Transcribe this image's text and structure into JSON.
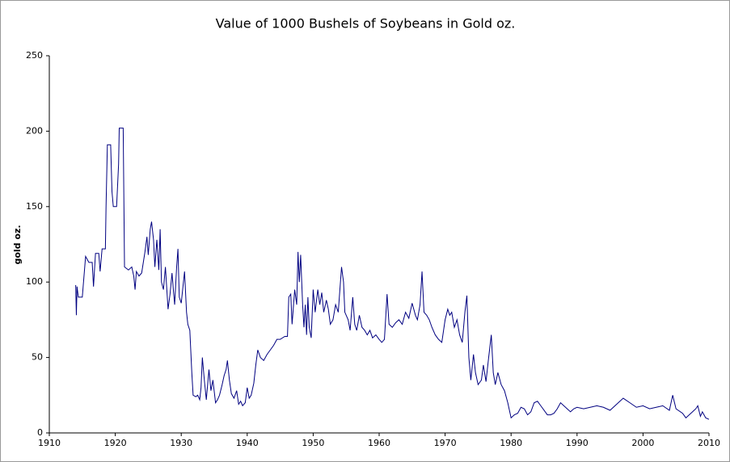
{
  "chart_data": {
    "type": "line",
    "title": "Value of 1000 Bushels of Soybeans in Gold oz.",
    "y_label": "gold oz.",
    "xlim": [
      1910,
      2010
    ],
    "xticks": [
      1910,
      1920,
      1930,
      1940,
      1950,
      1960,
      1970,
      1980,
      1990,
      2000,
      2010
    ],
    "ylim": [
      0,
      250
    ],
    "yticks": [
      0,
      50,
      100,
      150,
      200,
      250
    ],
    "grid": false,
    "series": [
      {
        "name": "Soybeans",
        "color": "#000080",
        "x": [
          1914.0,
          1914.1,
          1914.2,
          1914.4,
          1915,
          1915.5,
          1916,
          1916.5,
          1916.7,
          1917,
          1917.5,
          1917.7,
          1918,
          1918.5,
          1918.6,
          1918.8,
          1919.3,
          1919.5,
          1919.7,
          1920.2,
          1920.5,
          1920.6,
          1921.2,
          1921.4,
          1922,
          1922.5,
          1922.8,
          1923,
          1923.2,
          1923.6,
          1924,
          1924.5,
          1924.8,
          1925,
          1925.3,
          1925.5,
          1925.8,
          1926,
          1926.3,
          1926.6,
          1926.8,
          1927,
          1927.3,
          1927.6,
          1928,
          1928.3,
          1928.6,
          1928.8,
          1929,
          1929.3,
          1929.5,
          1929.7,
          1930,
          1930.5,
          1930.8,
          1931,
          1931.3,
          1931.6,
          1931.8,
          1932.2,
          1932.5,
          1932.8,
          1933,
          1933.2,
          1933.5,
          1933.8,
          1934.2,
          1934.5,
          1934.8,
          1935.2,
          1935.5,
          1935.8,
          1936.2,
          1936.5,
          1936.8,
          1937,
          1937.3,
          1937.6,
          1938,
          1938.4,
          1938.7,
          1939,
          1939.3,
          1939.7,
          1940,
          1940.3,
          1940.6,
          1941,
          1941.3,
          1941.6,
          1942,
          1942.5,
          1943,
          1943.5,
          1944,
          1944.5,
          1945,
          1945.7,
          1946.1,
          1946.3,
          1946.6,
          1946.8,
          1947.2,
          1947.5,
          1947.7,
          1947.9,
          1948.1,
          1948.4,
          1948.6,
          1948.8,
          1949,
          1949.2,
          1949.4,
          1949.7,
          1950,
          1950.3,
          1950.7,
          1951,
          1951.3,
          1951.6,
          1952,
          1952.3,
          1952.6,
          1953,
          1953.4,
          1953.8,
          1954.3,
          1954.6,
          1954.8,
          1955.3,
          1955.6,
          1956,
          1956.3,
          1956.6,
          1957,
          1957.4,
          1957.8,
          1958.2,
          1958.6,
          1959,
          1959.5,
          1960,
          1960.4,
          1960.8,
          1961.2,
          1961.5,
          1962,
          1962.5,
          1963,
          1963.5,
          1964,
          1964.5,
          1965,
          1965.5,
          1965.8,
          1966.2,
          1966.5,
          1966.8,
          1967.2,
          1967.6,
          1968,
          1968.5,
          1969,
          1969.5,
          1970,
          1970.4,
          1970.7,
          1971,
          1971.4,
          1971.8,
          1972.2,
          1972.6,
          1973,
          1973.3,
          1973.6,
          1973.9,
          1974.3,
          1974.6,
          1975,
          1975.5,
          1975.8,
          1976.2,
          1976.6,
          1977,
          1977.3,
          1977.6,
          1978,
          1978.5,
          1979,
          1979.5,
          1980,
          1980.5,
          1981,
          1981.5,
          1982,
          1982.5,
          1983,
          1983.5,
          1984,
          1984.5,
          1985,
          1985.5,
          1986,
          1986.5,
          1987,
          1987.5,
          1988,
          1988.5,
          1989,
          1989.5,
          1990,
          1991,
          1992,
          1993,
          1994,
          1995,
          1996,
          1997,
          1998,
          1999,
          2000,
          2001,
          2002,
          2003,
          2004,
          2004.5,
          2005,
          2006,
          2006.5,
          2007,
          2007.5,
          2008,
          2008.3,
          2008.7,
          2009,
          2009.5,
          2010
        ],
        "values": [
          98,
          78,
          97,
          90,
          90,
          117,
          113,
          113,
          97,
          119,
          119,
          107,
          122,
          122,
          150,
          191,
          191,
          160,
          150,
          150,
          178,
          202,
          202,
          110,
          108,
          110,
          104,
          95,
          107,
          104,
          106,
          120,
          130,
          118,
          135,
          140,
          128,
          110,
          128,
          108,
          135,
          100,
          95,
          110,
          82,
          92,
          106,
          95,
          85,
          110,
          122,
          90,
          86,
          107,
          80,
          72,
          68,
          40,
          25,
          24,
          25,
          22,
          30,
          50,
          35,
          22,
          42,
          28,
          35,
          20,
          22,
          25,
          32,
          38,
          42,
          48,
          35,
          26,
          23,
          28,
          19,
          21,
          18,
          20,
          30,
          23,
          25,
          33,
          45,
          55,
          50,
          48,
          52,
          55,
          58,
          62,
          62,
          64,
          64,
          90,
          92,
          72,
          95,
          85,
          120,
          100,
          118,
          85,
          70,
          85,
          65,
          90,
          70,
          63,
          95,
          80,
          95,
          85,
          93,
          80,
          88,
          82,
          72,
          75,
          85,
          80,
          110,
          100,
          80,
          75,
          68,
          90,
          72,
          68,
          78,
          70,
          68,
          65,
          68,
          63,
          65,
          62,
          60,
          62,
          92,
          72,
          70,
          73,
          75,
          72,
          80,
          76,
          86,
          78,
          75,
          85,
          107,
          80,
          78,
          75,
          70,
          65,
          62,
          60,
          75,
          82,
          78,
          80,
          70,
          75,
          65,
          60,
          80,
          91,
          50,
          35,
          52,
          40,
          32,
          35,
          45,
          34,
          50,
          65,
          40,
          32,
          40,
          32,
          28,
          20,
          10,
          12,
          13,
          17,
          16,
          12,
          14,
          20,
          21,
          18,
          15,
          12,
          12,
          13,
          16,
          20,
          18,
          16,
          14,
          16,
          17,
          16,
          17,
          18,
          17,
          15,
          19,
          23,
          20,
          17,
          18,
          16,
          17,
          18,
          15,
          25,
          16,
          13,
          10,
          12,
          14,
          16,
          18,
          11,
          14,
          10,
          9
        ]
      }
    ]
  }
}
